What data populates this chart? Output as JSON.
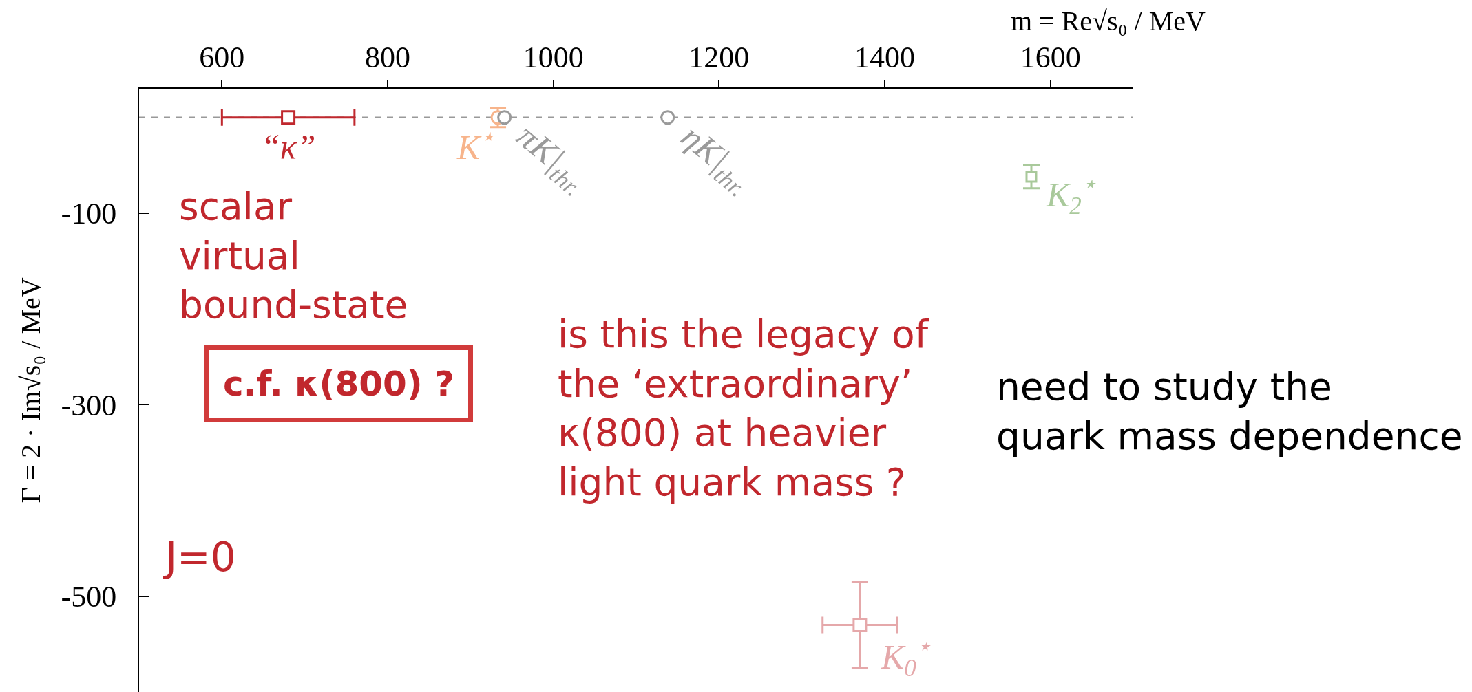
{
  "chart_data": {
    "type": "scatter",
    "xlabel": "m = Re√s₀ / MeV",
    "ylabel": "Γ = 2 · Im√s₀ / MeV",
    "xlim": [
      500,
      1700
    ],
    "xticks": [
      600,
      800,
      1000,
      1200,
      1400,
      1600
    ],
    "ylim": [
      -600,
      30
    ],
    "yticks": [
      -100,
      -300,
      -500
    ],
    "grid": false,
    "ref_lines": [
      {
        "axis": "y",
        "value": 0,
        "line_style": "dashed",
        "color": "#999999"
      }
    ],
    "series": [
      {
        "name": "“κ”",
        "color": "#c0282e",
        "x": [
          680
        ],
        "values": [
          0
        ],
        "xerrors": [
          80
        ],
        "marker": "square"
      },
      {
        "name": "K$^{⋆}$",
        "color": "#f7b48b",
        "x": [
          933
        ],
        "values": [
          0
        ],
        "errors": [
          10
        ],
        "marker": "circle"
      },
      {
        "name": "πK|$_{thr.}$",
        "color": "#9a9a9a",
        "x": [
          941
        ],
        "values": [
          0
        ],
        "marker": "circle"
      },
      {
        "name": "ηK|$_{thr.}$",
        "color": "#9a9a9a",
        "x": [
          1138
        ],
        "values": [
          0
        ],
        "marker": "circle"
      },
      {
        "name": "K$_{2}$$^{⋆}$",
        "color": "#a9c99b",
        "x": [
          1577
        ],
        "values": [
          -62
        ],
        "errors": [
          12
        ],
        "marker": "square"
      },
      {
        "name": "K$_{0}$$^{⋆}$",
        "color": "#e5a8aa",
        "x": [
          1370
        ],
        "values": [
          -530
        ],
        "errors": [
          45
        ],
        "xerrors": [
          45
        ],
        "marker": "square"
      }
    ],
    "annotations": [
      "scalar\nvirtual\nbound-state",
      "c.f. κ(800) ?",
      "J=0",
      "is this the legacy of\nthe ‘extraordinary’\nκ(800) at heavier\nlight quark mass ?",
      "need to study the\nquark mass dependence"
    ]
  }
}
